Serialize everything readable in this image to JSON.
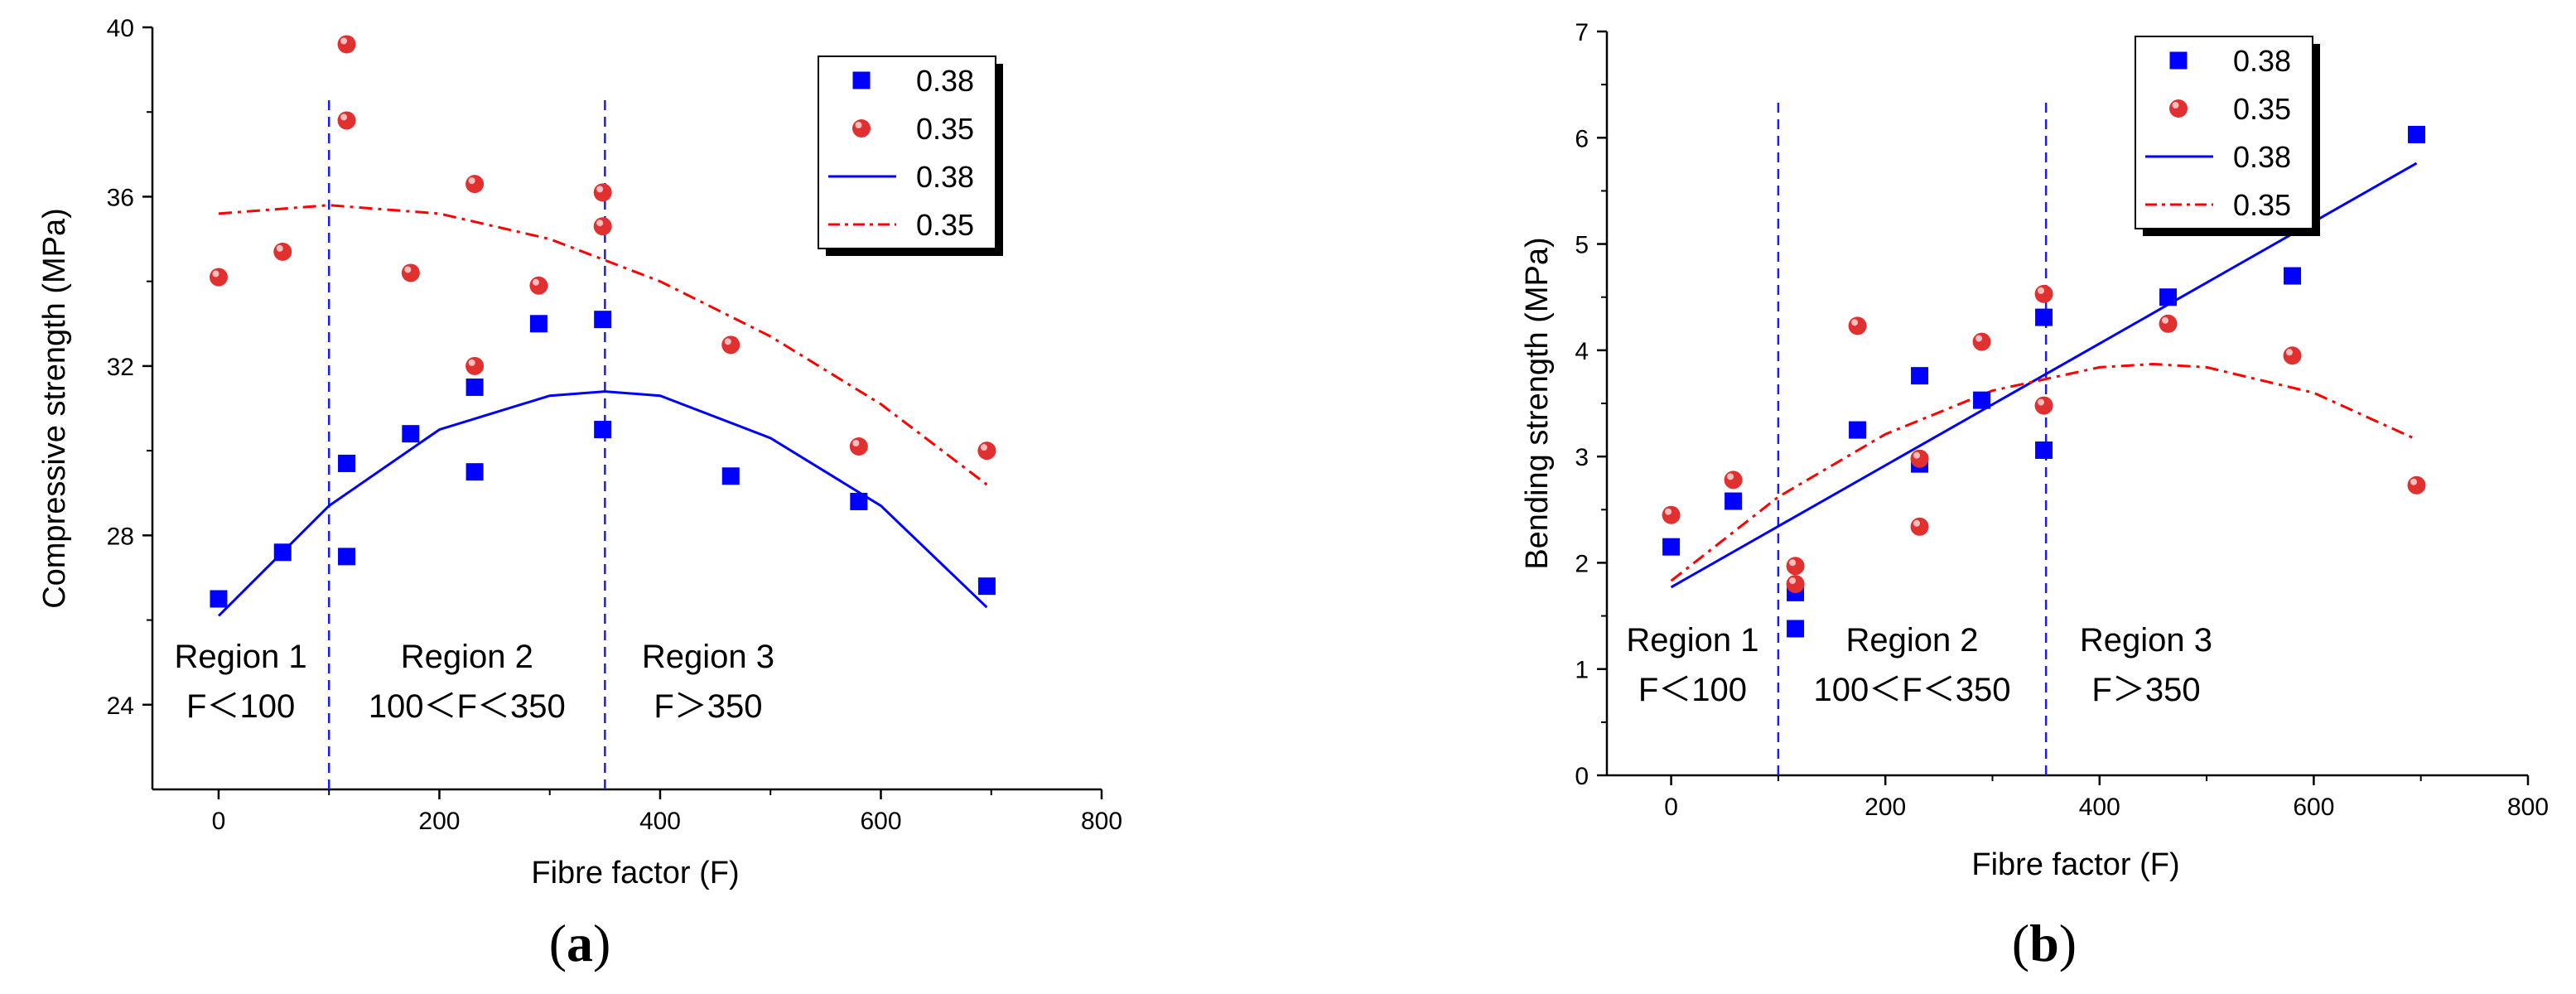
{
  "chart_data": [
    {
      "type": "scatter",
      "panel_label": "a",
      "xlabel": "Fibre factor (F)",
      "ylabel": "Compressive strength (MPa)",
      "xlim": [
        -60,
        800
      ],
      "ylim": [
        22,
        40
      ],
      "xticks": [
        0,
        200,
        400,
        600,
        800
      ],
      "yticks": [
        24,
        28,
        32,
        36,
        40
      ],
      "series": [
        {
          "name": "0.38",
          "marker": "square",
          "color": "#0000ff",
          "points": [
            [
              0,
              26.5
            ],
            [
              58,
              27.6
            ],
            [
              116,
              27.5
            ],
            [
              116,
              29.7
            ],
            [
              174,
              30.4
            ],
            [
              232,
              31.5
            ],
            [
              232,
              29.5
            ],
            [
              290,
              33.0
            ],
            [
              348,
              33.1
            ],
            [
              348,
              30.5
            ],
            [
              464,
              29.4
            ],
            [
              580,
              28.8
            ],
            [
              696,
              26.8
            ]
          ]
        },
        {
          "name": "0.35",
          "marker": "sphere",
          "color": "#e03030",
          "points": [
            [
              0,
              34.1
            ],
            [
              58,
              34.7
            ],
            [
              116,
              39.6
            ],
            [
              116,
              37.8
            ],
            [
              174,
              34.2
            ],
            [
              232,
              36.3
            ],
            [
              232,
              32.0
            ],
            [
              290,
              33.9
            ],
            [
              348,
              36.1
            ],
            [
              348,
              35.3
            ],
            [
              464,
              32.5
            ],
            [
              580,
              30.1
            ],
            [
              696,
              30.0
            ]
          ]
        }
      ],
      "fits": [
        {
          "name": "0.38",
          "style": "solid",
          "color": "#0000ff",
          "x_range": [
            0,
            696
          ],
          "x": [
            0,
            100,
            200,
            300,
            350,
            400,
            500,
            600,
            696
          ],
          "y": [
            26.1,
            28.7,
            30.5,
            31.3,
            31.4,
            31.3,
            30.3,
            28.7,
            26.3
          ]
        },
        {
          "name": "0.35",
          "style": "dashdot",
          "color": "#ff0000",
          "x_range": [
            0,
            696
          ],
          "x": [
            0,
            100,
            200,
            300,
            400,
            500,
            600,
            696
          ],
          "y": [
            35.6,
            35.8,
            35.6,
            35.0,
            34.0,
            32.7,
            31.1,
            29.2
          ]
        }
      ],
      "vlines": [
        100,
        350
      ],
      "regions": [
        {
          "title": "Region 1",
          "condition": "F＜100"
        },
        {
          "title": "Region 2",
          "condition": "100＜F＜350"
        },
        {
          "title": "Region 3",
          "condition": "F＞350"
        }
      ],
      "legend_position": "top-right"
    },
    {
      "type": "scatter",
      "panel_label": "b",
      "xlabel": "Fibre factor (F)",
      "ylabel": "Bending strength (MPa)",
      "xlim": [
        -60,
        800
      ],
      "ylim": [
        0,
        7
      ],
      "xticks": [
        0,
        200,
        400,
        600,
        800
      ],
      "yticks": [
        0,
        1,
        2,
        3,
        4,
        5,
        6,
        7
      ],
      "series": [
        {
          "name": "0.38",
          "marker": "square",
          "color": "#0000ff",
          "points": [
            [
              0,
              2.15
            ],
            [
              58,
              2.58
            ],
            [
              116,
              1.72
            ],
            [
              116,
              1.38
            ],
            [
              174,
              3.25
            ],
            [
              232,
              3.76
            ],
            [
              232,
              2.93
            ],
            [
              290,
              3.53
            ],
            [
              348,
              4.31
            ],
            [
              348,
              3.06
            ],
            [
              464,
              4.5
            ],
            [
              580,
              4.7
            ],
            [
              696,
              6.03
            ]
          ]
        },
        {
          "name": "0.35",
          "marker": "sphere",
          "color": "#e03030",
          "points": [
            [
              0,
              2.45
            ],
            [
              58,
              2.78
            ],
            [
              116,
              1.97
            ],
            [
              116,
              1.8
            ],
            [
              174,
              4.23
            ],
            [
              232,
              2.98
            ],
            [
              232,
              2.34
            ],
            [
              290,
              4.08
            ],
            [
              348,
              4.53
            ],
            [
              348,
              3.48
            ],
            [
              464,
              4.25
            ],
            [
              580,
              3.95
            ],
            [
              696,
              2.73
            ]
          ]
        }
      ],
      "fits": [
        {
          "name": "0.38",
          "style": "solid",
          "color": "#0000ff",
          "x_range": [
            0,
            696
          ],
          "x": [
            0,
            696
          ],
          "y": [
            1.77,
            5.76
          ]
        },
        {
          "name": "0.35",
          "style": "dashdot",
          "color": "#ff0000",
          "x_range": [
            0,
            696
          ],
          "x": [
            0,
            100,
            200,
            300,
            400,
            450,
            500,
            600,
            696
          ],
          "y": [
            1.83,
            2.62,
            3.21,
            3.62,
            3.84,
            3.87,
            3.84,
            3.6,
            3.16
          ]
        }
      ],
      "vlines": [
        100,
        350
      ],
      "regions": [
        {
          "title": "Region 1",
          "condition": "F＜100"
        },
        {
          "title": "Region 2",
          "condition": "100＜F＜350"
        },
        {
          "title": "Region 3",
          "condition": "F＞350"
        }
      ],
      "legend_position": "top-right"
    }
  ]
}
